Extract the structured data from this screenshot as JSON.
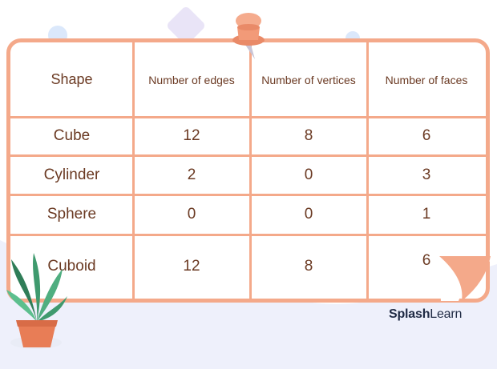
{
  "table": {
    "headers": [
      "Shape",
      "Number of edges",
      "Number of vertices",
      "Number of faces"
    ],
    "rows": [
      [
        "Cube",
        "12",
        "8",
        "6"
      ],
      [
        "Cylinder",
        "2",
        "0",
        "3"
      ],
      [
        "Sphere",
        "0",
        "0",
        "1"
      ],
      [
        "Cuboid",
        "12",
        "8",
        "6"
      ]
    ]
  },
  "brand": {
    "bold": "Splash",
    "light": "Learn"
  },
  "colors": {
    "border": "#f4a98a",
    "text": "#6b3a23",
    "pin": "#f29a78",
    "plant_leaf": "#3f9a6e",
    "pot": "#e87d56"
  },
  "icons": [
    "pushpin-icon",
    "plant-icon"
  ]
}
